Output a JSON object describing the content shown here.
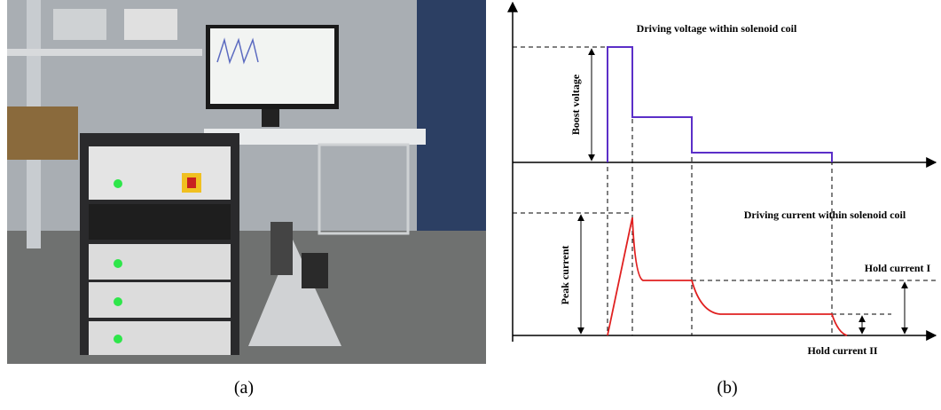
{
  "panels": {
    "a": "(a)",
    "b": "(b)"
  },
  "diagram": {
    "voltage_title": "Driving voltage within solenoid coil",
    "boost_voltage": "Boost voltage",
    "current_title": "Driving current within solenoid coil",
    "peak_current": "Peak current",
    "hold_current_1": "Hold current I",
    "hold_current_2": "Hold current II"
  }
}
